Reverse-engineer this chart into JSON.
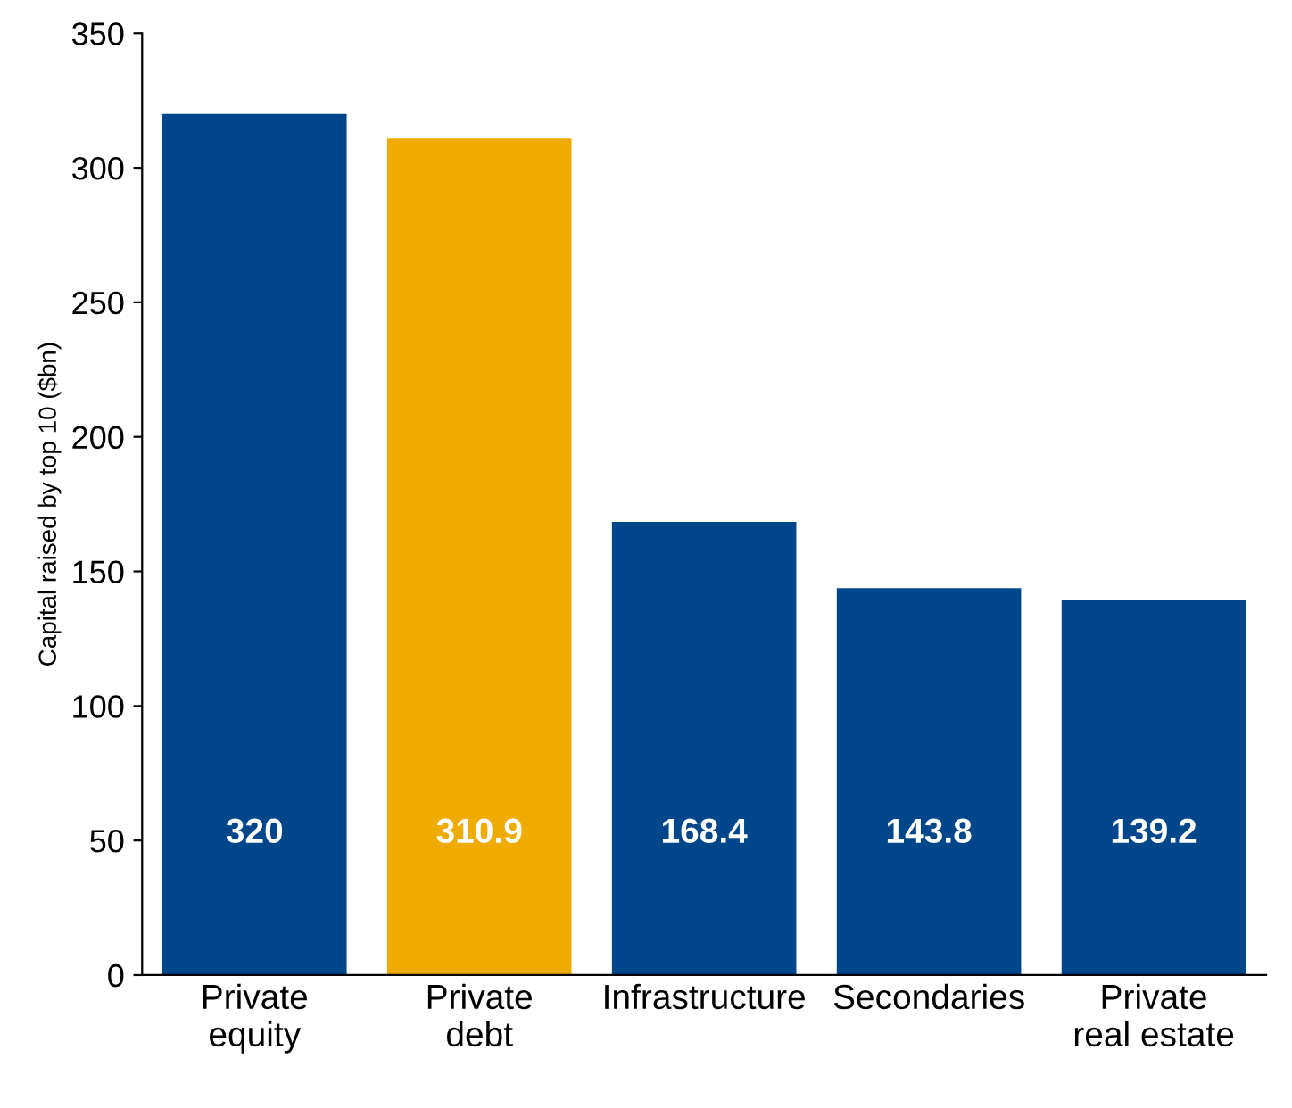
{
  "chart_data": {
    "type": "bar",
    "ylabel": "Capital raised by top 10 ($bn)",
    "categories": [
      "Private\nequity",
      "Private\ndebt",
      "Infrastructure",
      "Secondaries",
      "Private\nreal estate"
    ],
    "values": [
      320,
      310.9,
      168.4,
      143.8,
      139.2
    ],
    "colors": [
      "#00468b",
      "#f0ab00",
      "#00468b",
      "#00468b",
      "#00468b"
    ],
    "ylim": [
      0,
      350
    ],
    "yticks": [
      0,
      50,
      100,
      150,
      200,
      250,
      300,
      350
    ],
    "data_labels": true,
    "grid": false,
    "legend": false
  }
}
